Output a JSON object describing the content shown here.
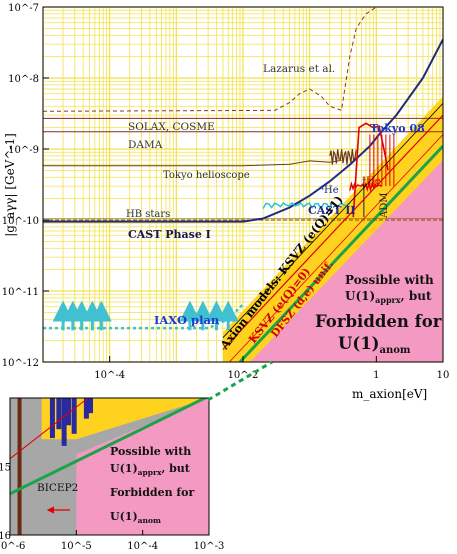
{
  "chart_data": [
    {
      "type": "line",
      "xlabel": "m_axion[eV]",
      "ylabel": "|g_aγγ| [GeV^-1]",
      "x_scale": "log",
      "y_scale": "log",
      "xlim": [
        1e-05,
        10
      ],
      "ylim": [
        1e-12,
        1e-07
      ],
      "grid": true,
      "x_ticks": [
        "10^-4",
        "10^-2",
        "1",
        "10"
      ],
      "y_ticks": [
        "10^-12",
        "10^-11",
        "10^-10",
        "10^-9",
        "10^-8",
        "10^-7"
      ],
      "series": [
        {
          "name": "CAST Phase I",
          "x": [
            1e-05,
            0.001,
            0.01,
            0.02,
            0.05,
            0.1,
            0.2,
            0.4,
            0.8,
            1.1,
            2,
            5,
            10
          ],
          "y": [
            9.5e-11,
            9.5e-11,
            9.5e-11,
            1.05e-10,
            1.5e-10,
            2.2e-10,
            3.5e-10,
            6e-10,
            1.1e-09,
            1.6e-09,
            3e-09,
            1e-08,
            3.5e-08
          ]
        },
        {
          "name": "Tokyo helioscope",
          "x": [
            1e-05,
            0.01,
            0.05,
            0.1,
            0.2,
            0.3
          ],
          "y": [
            5.8e-10,
            5.8e-10,
            6.1e-10,
            6.8e-10,
            6.5e-10,
            6.9e-10
          ]
        },
        {
          "name": "Lazarus et al.",
          "x": [
            1e-05,
            0.03,
            0.05,
            0.07,
            0.1,
            0.15,
            0.2,
            0.3,
            0.4,
            0.5,
            0.7,
            1
          ],
          "y": [
            3.4e-09,
            3.5e-09,
            4.5e-09,
            6e-09,
            7e-09,
            5.5e-09,
            4e-09,
            3.5e-09,
            2e-08,
            5e-08,
            8e-08,
            1e-07
          ]
        },
        {
          "name": "SOLAX, COSME",
          "x": [
            1e-05,
            10
          ],
          "y": [
            2.7e-09,
            2.7e-09
          ]
        },
        {
          "name": "DAMA",
          "x": [
            1e-05,
            10
          ],
          "y": [
            1.75e-09,
            1.75e-09
          ]
        },
        {
          "name": "HB stars",
          "x": [
            1e-05,
            10
          ],
          "y": [
            1e-10,
            1e-10
          ]
        },
        {
          "name": "IAXO plan",
          "x": [
            1e-05,
            0.003,
            0.006,
            0.01
          ],
          "y": [
            3e-12,
            3e-12,
            4e-12,
            6.5e-12
          ]
        },
        {
          "name": "Axion models: KSVZ (e(Q)=1)",
          "x": [
            0.005,
            10
          ],
          "y": [
            2.2e-12,
            4.4e-09
          ]
        },
        {
          "name": "KSVZ (e(Q)=0)",
          "x": [
            0.005,
            10
          ],
          "y": [
            1.5e-12,
            3e-09
          ]
        },
        {
          "name": "DFSZ (d,e) unif.",
          "x": [
            0.005,
            10
          ],
          "y": [
            8e-13,
            1.6e-09
          ]
        }
      ],
      "region_labels": {
        "cast2": "CAST II",
        "he4": "⁴He",
        "he3": "³He",
        "tokyo08": "Tokyo 08",
        "adm": "ADM",
        "possible": [
          "Possible with",
          "U(1)",
          "apprx",
          ", but"
        ],
        "forbidden": [
          "Forbidden for",
          "U(1)",
          "anom"
        ]
      }
    },
    {
      "type": "area",
      "xlim": [
        1e-06,
        0.001
      ],
      "ylim": [
        1e-16,
        1e-14
      ],
      "x_ticks": [
        "10^-6",
        "10^-5",
        "10^-4",
        "10^-3"
      ],
      "y_ticks": [
        "10^-15",
        "10^-16"
      ],
      "labels": {
        "bicep2": "BICEP2",
        "possible": [
          "Possible with",
          "U(1)",
          "apprx",
          ", but"
        ],
        "forbidden": [
          "Forbidden for",
          "U(1)",
          "anom"
        ]
      }
    }
  ]
}
